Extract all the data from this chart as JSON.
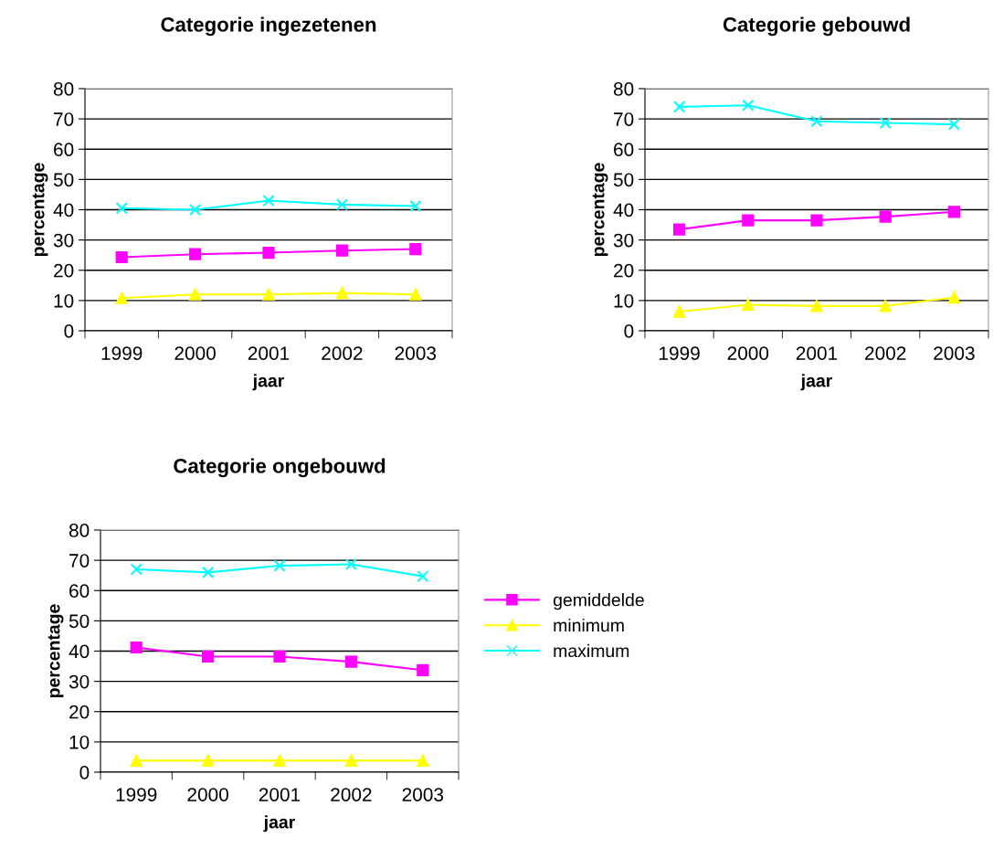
{
  "chart_data": [
    {
      "type": "line",
      "title": "Categorie ingezetenen",
      "xlabel": "jaar",
      "ylabel": "percentage",
      "categories": [
        "1999",
        "2000",
        "2001",
        "2002",
        "2003"
      ],
      "ylim": [
        0,
        80
      ],
      "yticks": [
        0,
        10,
        20,
        30,
        40,
        50,
        60,
        70,
        80
      ],
      "grid": "y",
      "legend": false,
      "series": [
        {
          "color": "#ff00ff",
          "marker": "square",
          "values": [
            24.3,
            25.3,
            25.8,
            26.5,
            27
          ]
        },
        {
          "color": "#ffff00",
          "marker": "triangle",
          "values": [
            10.8,
            12,
            12,
            12.5,
            12
          ]
        },
        {
          "color": "#00ffff",
          "marker": "cross",
          "values": [
            40.5,
            40,
            43,
            41.7,
            41.2
          ]
        }
      ]
    },
    {
      "type": "line",
      "title": "Categorie gebouwd",
      "xlabel": "jaar",
      "ylabel": "percentage",
      "categories": [
        "1999",
        "2000",
        "2001",
        "2002",
        "2003"
      ],
      "ylim": [
        0,
        80
      ],
      "yticks": [
        0,
        10,
        20,
        30,
        40,
        50,
        60,
        70,
        80
      ],
      "grid": "y",
      "legend": false,
      "series": [
        {
          "color": "#ff00ff",
          "marker": "square",
          "values": [
            33.5,
            36.5,
            36.5,
            37.7,
            39.3
          ]
        },
        {
          "color": "#ffff00",
          "marker": "triangle",
          "values": [
            6.3,
            8.6,
            8.2,
            8.2,
            11
          ]
        },
        {
          "color": "#00ffff",
          "marker": "cross",
          "values": [
            74,
            74.5,
            69.2,
            68.7,
            68.2
          ]
        }
      ]
    },
    {
      "type": "line",
      "title": "Categorie ongebouwd",
      "xlabel": "jaar",
      "ylabel": "percentage",
      "categories": [
        "1999",
        "2000",
        "2001",
        "2002",
        "2003"
      ],
      "ylim": [
        0,
        80
      ],
      "yticks": [
        0,
        10,
        20,
        30,
        40,
        50,
        60,
        70,
        80
      ],
      "grid": "y",
      "legend": "right",
      "series": [
        {
          "name": "gemiddelde",
          "color": "#ff00ff",
          "marker": "square",
          "values": [
            41.2,
            38.2,
            38.2,
            36.5,
            33.7
          ]
        },
        {
          "name": "minimum",
          "color": "#ffff00",
          "marker": "triangle",
          "values": [
            3.8,
            3.8,
            3.8,
            3.8,
            3.8
          ]
        },
        {
          "name": "maximum",
          "color": "#00ffff",
          "marker": "cross",
          "values": [
            67,
            66,
            68.2,
            68.7,
            64.7
          ]
        }
      ]
    }
  ]
}
